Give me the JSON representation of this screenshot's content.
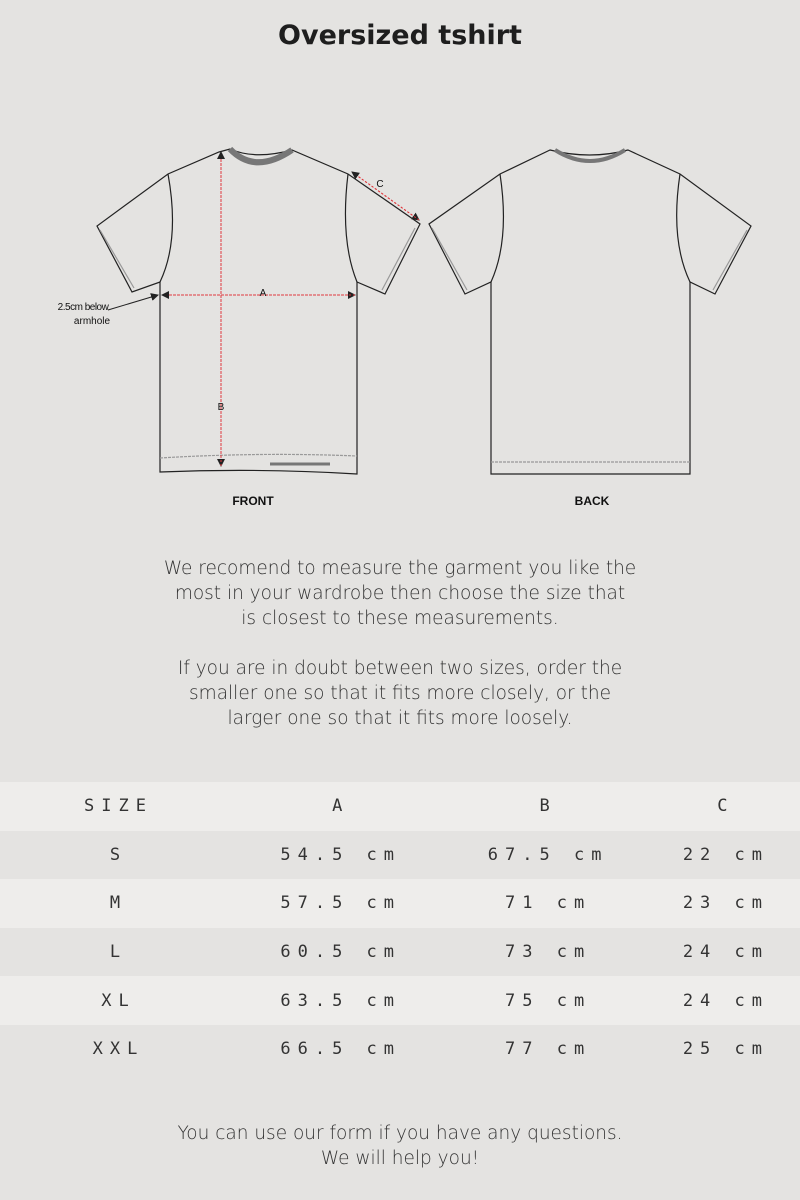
{
  "title": "Oversized tshirt",
  "diagram": {
    "front_label": "FRONT",
    "back_label": "BACK",
    "measure_a": "A",
    "measure_b": "B",
    "measure_c": "C",
    "note_line1": "2.5cm below",
    "note_line2": "armhole",
    "measure_color": "#e0393e"
  },
  "intro": {
    "p1": [
      "We recomend to measure the garment you like the",
      "most in your wardrobe then choose the size that",
      "is closest to these measurements."
    ],
    "p2": [
      "If you are in doubt between two sizes, order the",
      "smaller one so that it fits more closely, or the",
      "larger one so that it fits more loosely."
    ]
  },
  "table": {
    "headers": [
      "SIZE",
      "A",
      "B",
      "C"
    ],
    "rows": [
      [
        "S",
        "54.5 cm",
        "67.5 cm",
        "22 cm"
      ],
      [
        "M",
        "57.5 cm",
        "71 cm",
        "23 cm"
      ],
      [
        "L",
        "60.5 cm",
        "73 cm",
        "24 cm"
      ],
      [
        "XL",
        "63.5 cm",
        "75 cm",
        "24 cm"
      ],
      [
        "XXL",
        "66.5 cm",
        "77 cm",
        "25 cm"
      ]
    ]
  },
  "footer": [
    "You can use our form if you have any questions.",
    "We will help you!"
  ]
}
